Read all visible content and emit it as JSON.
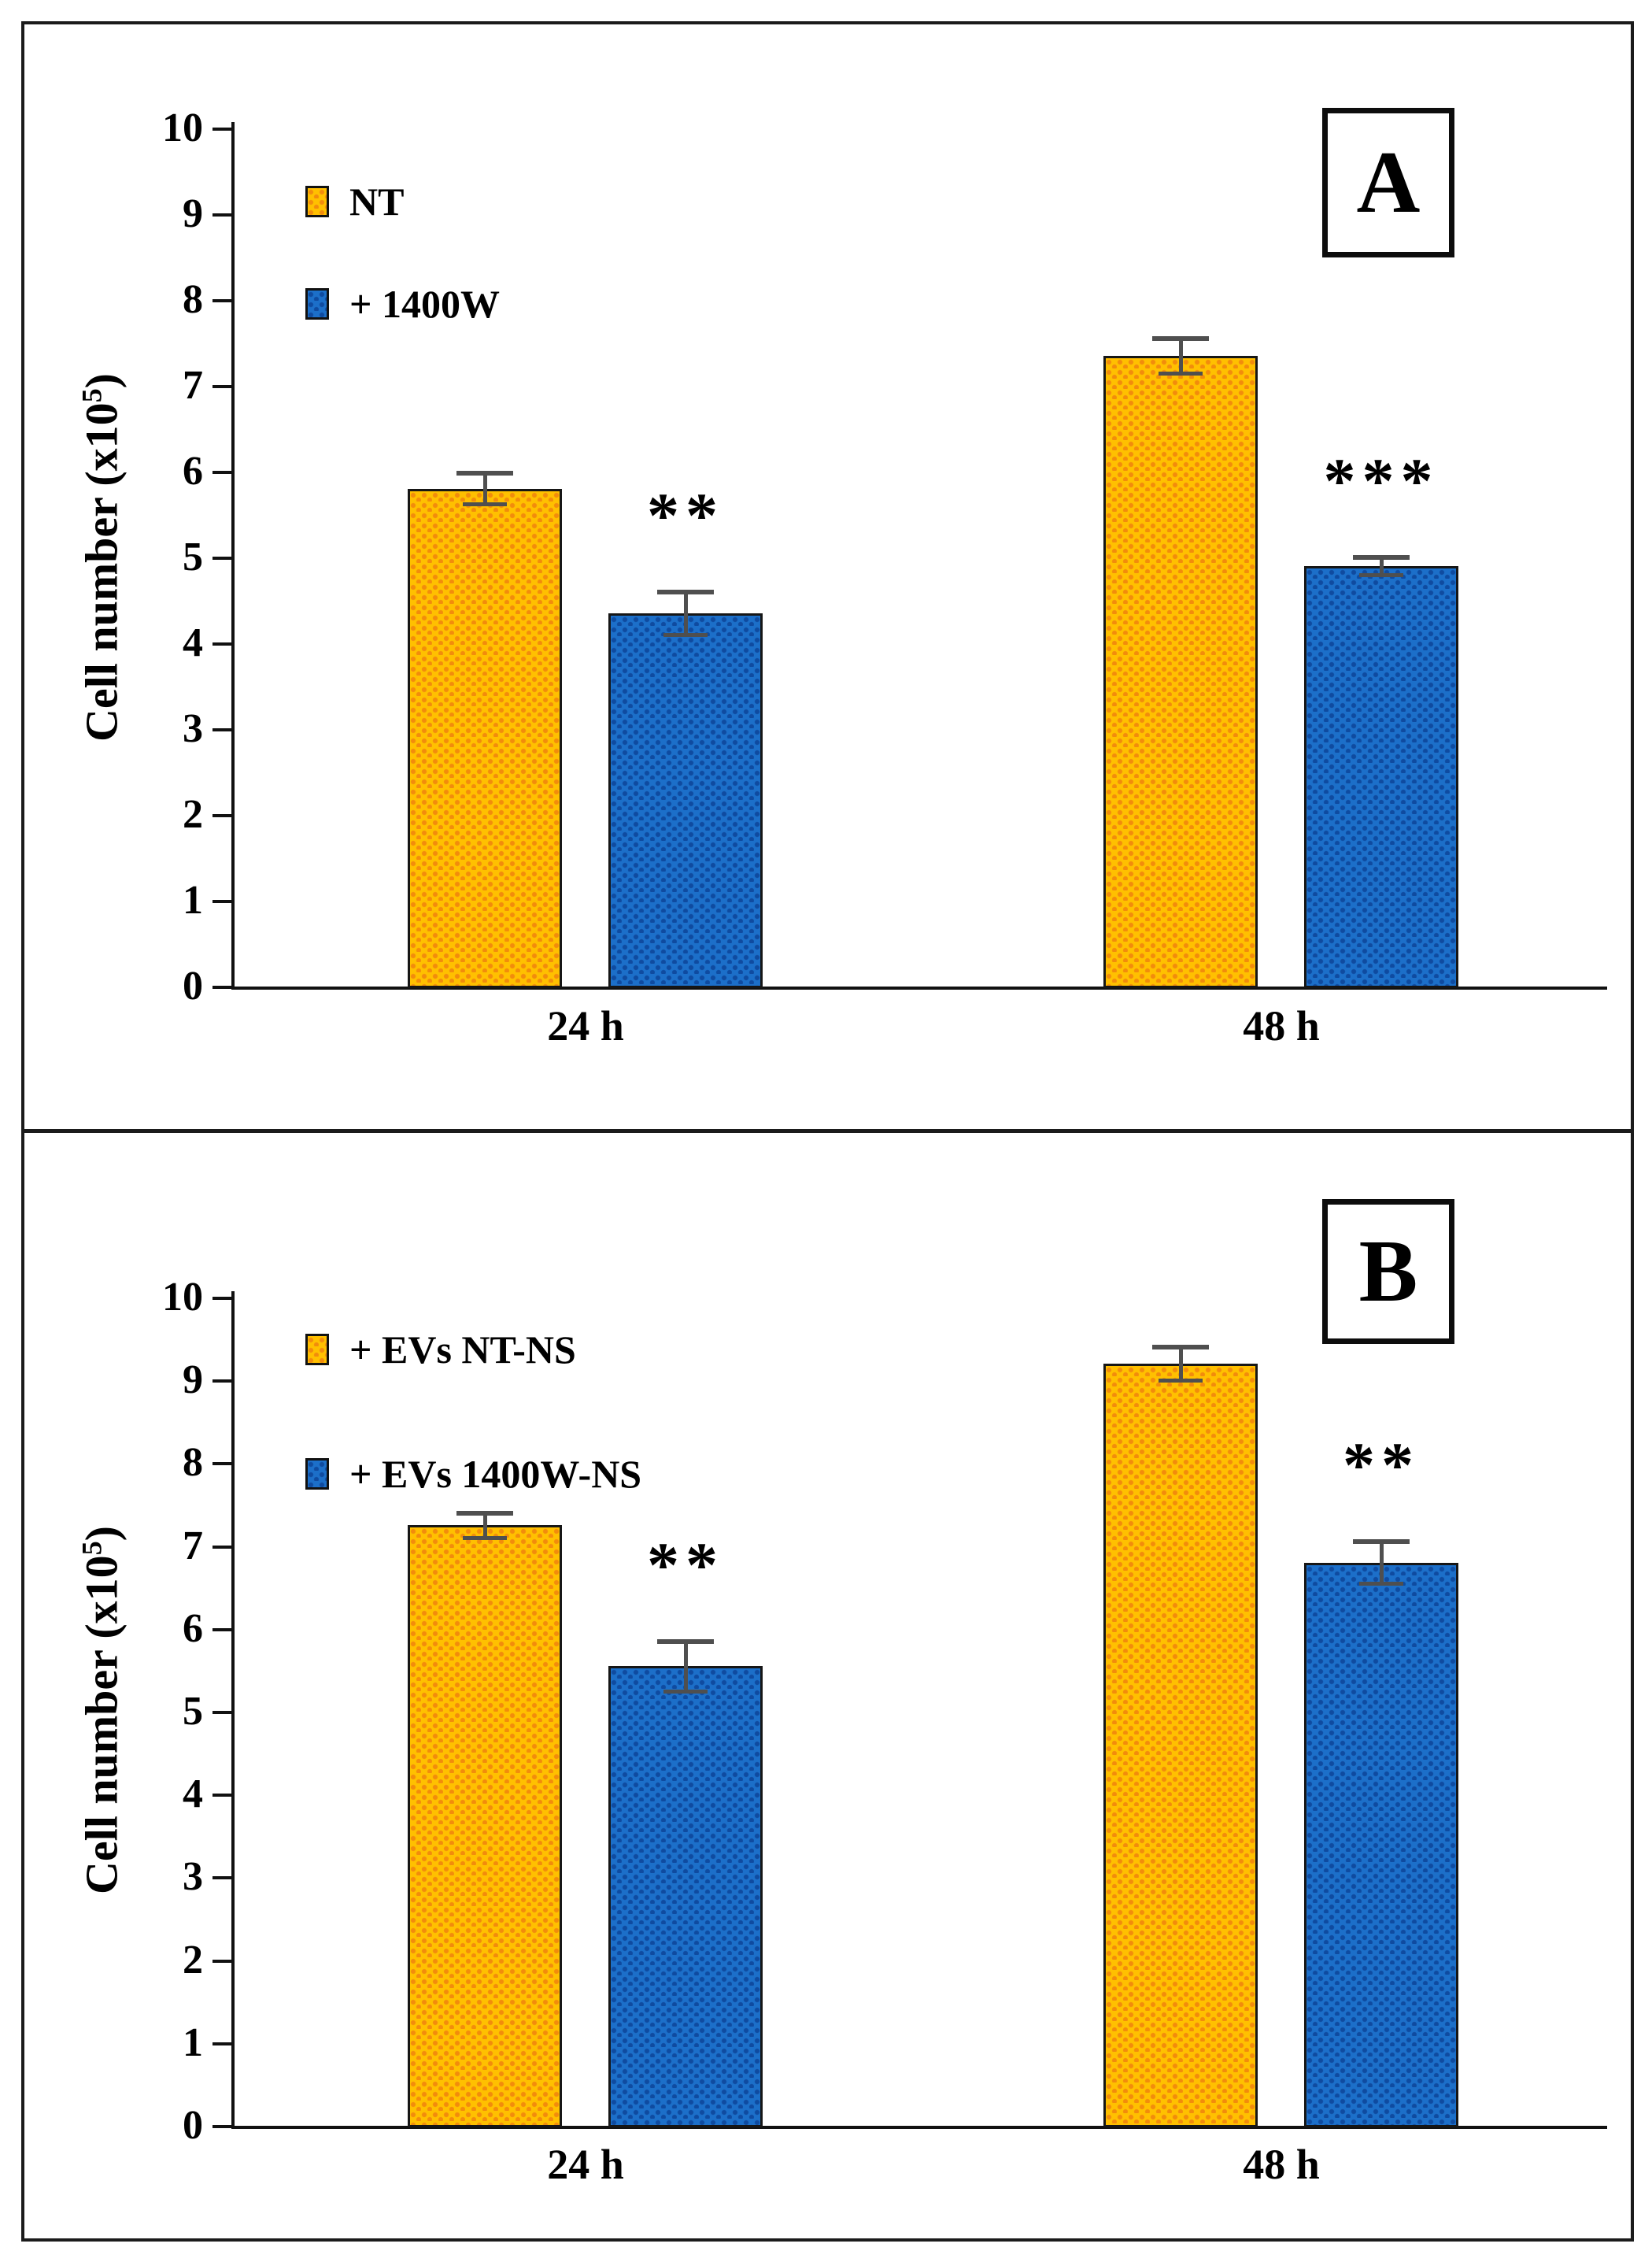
{
  "figure": {
    "background": "#ffffff",
    "border_color": "#1b1b1b",
    "error_bar_color": "#4f4f4f"
  },
  "chart_data": [
    {
      "type": "bar",
      "panel_letter": "A",
      "ylabel": "Cell number (x10⁵)",
      "ylabel_main": "Cell number (x10",
      "ylabel_sup": "5",
      "ylabel_end": ")",
      "ylim": [
        0,
        10
      ],
      "yticks": [
        0,
        1,
        2,
        3,
        4,
        5,
        6,
        7,
        8,
        9,
        10
      ],
      "grid": false,
      "legend_position": "top-left",
      "categories": [
        "24 h",
        "48 h"
      ],
      "series": [
        {
          "name": "NT",
          "color": "#FFC000",
          "dot_color": "#F28C0C",
          "values": [
            5.8,
            7.35
          ],
          "errors": [
            0.18,
            0.2
          ]
        },
        {
          "name": "+ 1400W",
          "color": "#1C6FC9",
          "dot_color": "#0F4BA0",
          "values": [
            4.35,
            4.9
          ],
          "errors": [
            0.25,
            0.1
          ]
        }
      ],
      "significance": [
        {
          "series": 1,
          "group": 0,
          "label": "**"
        },
        {
          "series": 1,
          "group": 1,
          "label": "***"
        }
      ]
    },
    {
      "type": "bar",
      "panel_letter": "B",
      "ylabel": "Cell number (x10⁵)",
      "ylabel_main": "Cell number (x10",
      "ylabel_sup": "5",
      "ylabel_end": ")",
      "ylim": [
        0,
        10
      ],
      "yticks": [
        0,
        1,
        2,
        3,
        4,
        5,
        6,
        7,
        8,
        9,
        10
      ],
      "grid": false,
      "legend_position": "top-left",
      "categories": [
        "24 h",
        "48 h"
      ],
      "series": [
        {
          "name": "+ EVs NT-NS",
          "color": "#FFC000",
          "dot_color": "#F28C0C",
          "values": [
            7.25,
            9.2
          ],
          "errors": [
            0.15,
            0.2
          ]
        },
        {
          "name": "+ EVs 1400W-NS",
          "color": "#1C6FC9",
          "dot_color": "#0F4BA0",
          "values": [
            5.55,
            6.8
          ],
          "errors": [
            0.3,
            0.25
          ]
        }
      ],
      "significance": [
        {
          "series": 1,
          "group": 0,
          "label": "**"
        },
        {
          "series": 1,
          "group": 1,
          "label": "**"
        }
      ]
    }
  ]
}
